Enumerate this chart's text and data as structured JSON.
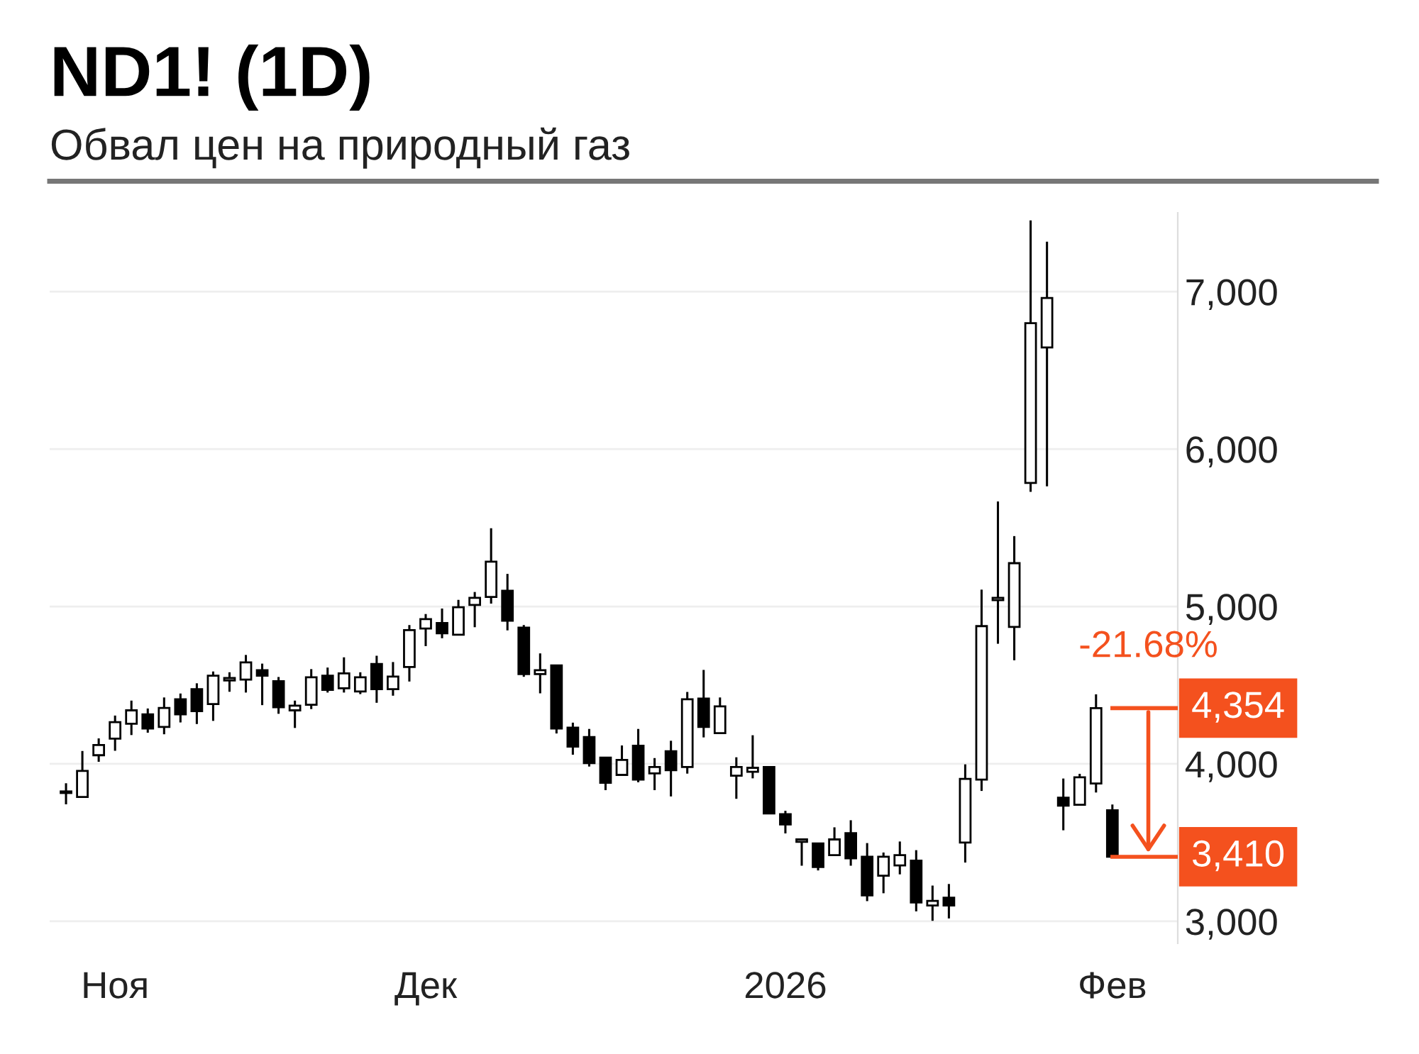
{
  "chart_data": {
    "type": "candlestick",
    "title": "ND1! (1D)",
    "subtitle": "Обвал цен на природный газ",
    "categories": [
      null,
      null,
      null,
      "Ноя",
      null,
      null,
      null,
      null,
      null,
      null,
      null,
      null,
      null,
      null,
      null,
      null,
      null,
      null,
      null,
      null,
      null,
      null,
      "Дек",
      null,
      null,
      null,
      null,
      null,
      null,
      null,
      null,
      null,
      null,
      null,
      null,
      null,
      null,
      null,
      null,
      null,
      null,
      null,
      null,
      null,
      "2026",
      null,
      null,
      null,
      null,
      null,
      null,
      null,
      null,
      null,
      null,
      null,
      null,
      null,
      null,
      null,
      null,
      null,
      null,
      null,
      "Фев"
    ],
    "ohlc": [
      [
        3815,
        3870,
        3750,
        3825
      ],
      [
        3790,
        4075,
        3790,
        3955
      ],
      [
        4055,
        4155,
        4020,
        4120
      ],
      [
        4160,
        4300,
        4090,
        4265
      ],
      [
        4255,
        4395,
        4190,
        4340
      ],
      [
        4315,
        4345,
        4205,
        4225
      ],
      [
        4235,
        4415,
        4195,
        4355
      ],
      [
        4410,
        4440,
        4270,
        4315
      ],
      [
        4475,
        4505,
        4260,
        4335
      ],
      [
        4380,
        4580,
        4280,
        4560
      ],
      [
        4530,
        4575,
        4465,
        4545
      ],
      [
        4535,
        4685,
        4460,
        4645
      ],
      [
        4595,
        4630,
        4380,
        4560
      ],
      [
        4525,
        4545,
        4325,
        4360
      ],
      [
        4340,
        4395,
        4235,
        4370
      ],
      [
        4375,
        4595,
        4355,
        4550
      ],
      [
        4560,
        4605,
        4460,
        4470
      ],
      [
        4480,
        4670,
        4460,
        4575
      ],
      [
        4460,
        4575,
        4450,
        4550
      ],
      [
        4635,
        4680,
        4395,
        4475
      ],
      [
        4475,
        4640,
        4440,
        4555
      ],
      [
        4615,
        4875,
        4530,
        4850
      ],
      [
        4860,
        4945,
        4755,
        4920
      ],
      [
        4895,
        4980,
        4805,
        4830
      ],
      [
        4820,
        5035,
        4820,
        4995
      ],
      [
        5010,
        5085,
        4875,
        5055
      ],
      [
        5060,
        5490,
        5025,
        5285
      ],
      [
        5100,
        5200,
        4855,
        4910
      ],
      [
        4865,
        4875,
        4560,
        4570
      ],
      [
        4570,
        4695,
        4455,
        4595
      ],
      [
        4625,
        4625,
        4200,
        4225
      ],
      [
        4230,
        4255,
        4065,
        4110
      ],
      [
        4170,
        4215,
        3990,
        4005
      ],
      [
        4040,
        4040,
        3840,
        3880
      ],
      [
        3930,
        4110,
        3930,
        4025
      ],
      [
        4115,
        4215,
        3890,
        3900
      ],
      [
        3940,
        4030,
        3840,
        3980
      ],
      [
        4080,
        4140,
        3800,
        3960
      ],
      [
        3980,
        4450,
        3945,
        4410
      ],
      [
        4415,
        4590,
        4175,
        4235
      ],
      [
        4195,
        4415,
        4195,
        4365
      ],
      [
        3925,
        4035,
        3785,
        3980
      ],
      [
        3950,
        4175,
        3915,
        3975
      ],
      [
        3980,
        3980,
        3685,
        3685
      ],
      [
        3680,
        3695,
        3565,
        3615
      ],
      [
        3505,
        3520,
        3360,
        3520
      ],
      [
        3495,
        3495,
        3330,
        3345
      ],
      [
        3420,
        3590,
        3420,
        3520
      ],
      [
        3560,
        3635,
        3360,
        3400
      ],
      [
        3410,
        3490,
        3135,
        3165
      ],
      [
        3290,
        3430,
        3185,
        3410
      ],
      [
        3355,
        3500,
        3305,
        3420
      ],
      [
        3385,
        3445,
        3070,
        3120
      ],
      [
        3100,
        3220,
        3010,
        3130
      ],
      [
        3150,
        3230,
        3025,
        3100
      ],
      [
        3500,
        3990,
        3380,
        3905
      ],
      [
        3900,
        5100,
        3835,
        4875
      ],
      [
        5040,
        5660,
        4770,
        5055
      ],
      [
        4870,
        5440,
        4665,
        5275
      ],
      [
        5785,
        7445,
        5735,
        6800
      ],
      [
        6645,
        7310,
        5770,
        6960
      ],
      [
        3785,
        3900,
        3585,
        3735
      ],
      [
        3740,
        3930,
        3740,
        3915
      ],
      [
        3875,
        4435,
        3825,
        4354
      ],
      [
        3705,
        3735,
        3410,
        3410
      ]
    ],
    "ylim": [
      2860,
      7500
    ],
    "yticks": [
      {
        "value": 3000,
        "label": "3,000"
      },
      {
        "value": 4000,
        "label": "4,000"
      },
      {
        "value": 5000,
        "label": "5,000"
      },
      {
        "value": 6000,
        "label": "6,000"
      },
      {
        "value": 7000,
        "label": "7,000"
      }
    ],
    "grid": "y",
    "ref_lines": [
      {
        "axis": "y",
        "value": 4354,
        "label": "4,354",
        "color": "#f4511e"
      },
      {
        "axis": "y",
        "value": 3410,
        "label": "3,410",
        "color": "#f4511e"
      }
    ],
    "annotations": [
      "-21.68%"
    ]
  }
}
